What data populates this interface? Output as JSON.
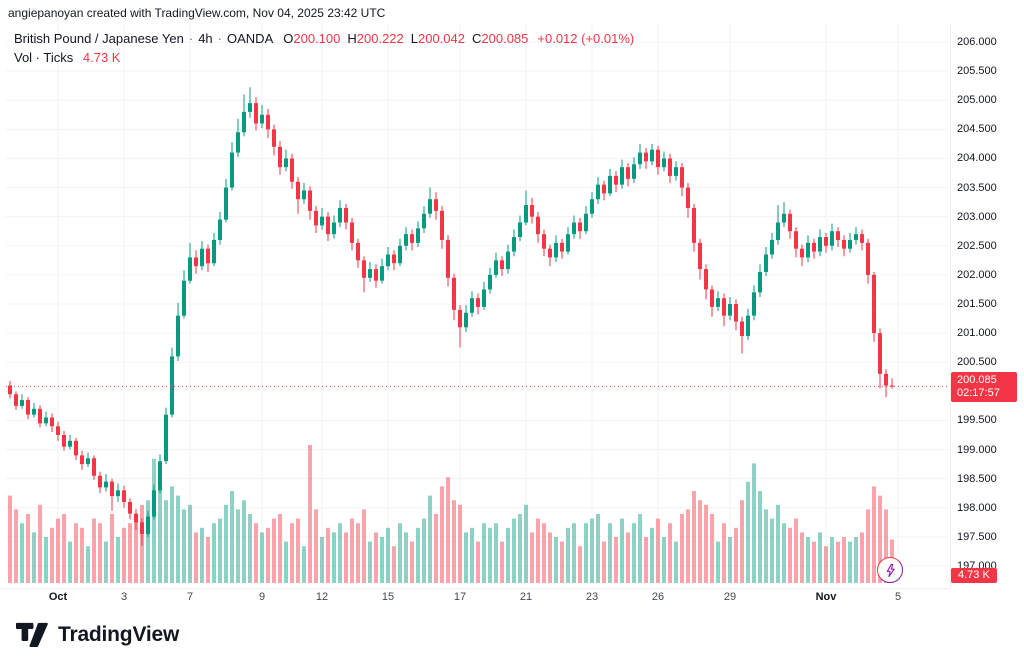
{
  "attribution": {
    "text": "angiepanoyan created with TradingView.com, Nov 04, 2025 23:42 UTC"
  },
  "legend": {
    "symbol": "British Pound / Japanese Yen",
    "separator": "·",
    "interval": "4h",
    "exchange": "OANDA",
    "ohlc": {
      "o_label": "O",
      "o": "200.100",
      "h_label": "H",
      "h": "200.222",
      "l_label": "L",
      "l": "200.042",
      "c_label": "C",
      "c": "200.085",
      "change": "+0.012 (+0.01%)"
    },
    "volume_row": {
      "label": "Vol · Ticks",
      "value": "4.73 K"
    }
  },
  "price_tag": {
    "price": "200.085",
    "countdown": "02:17:57"
  },
  "volume_tag": {
    "value": "4.73 K"
  },
  "footer": {
    "logo_text": "TradingView"
  },
  "colors": {
    "up": "#089981",
    "down": "#F23645",
    "vol_up": "rgba(8,153,129,0.45)",
    "vol_down": "rgba(242,54,69,0.45)",
    "tag_bg": "#F23645",
    "price_line": "#F23645",
    "text": "#131722",
    "grid": "#f2f3f5"
  },
  "price_scale": {
    "labels": [
      "206.000",
      "205.500",
      "205.000",
      "204.500",
      "204.000",
      "203.500",
      "203.000",
      "202.500",
      "202.000",
      "201.500",
      "201.000",
      "200.500",
      "199.500",
      "199.000",
      "198.500",
      "198.000",
      "197.500",
      "197.000"
    ]
  },
  "time_scale": {
    "labels": [
      {
        "text": "Oct",
        "index": 8,
        "major": true
      },
      {
        "text": "3",
        "index": 19,
        "major": false
      },
      {
        "text": "7",
        "index": 30,
        "major": false
      },
      {
        "text": "9",
        "index": 42,
        "major": false
      },
      {
        "text": "12",
        "index": 52,
        "major": false
      },
      {
        "text": "15",
        "index": 63,
        "major": false
      },
      {
        "text": "17",
        "index": 75,
        "major": false
      },
      {
        "text": "21",
        "index": 86,
        "major": false
      },
      {
        "text": "23",
        "index": 97,
        "major": false
      },
      {
        "text": "26",
        "index": 108,
        "major": false
      },
      {
        "text": "29",
        "index": 120,
        "major": false
      },
      {
        "text": "Nov",
        "index": 136,
        "major": true
      },
      {
        "text": "5",
        "index": 148,
        "major": false
      }
    ]
  },
  "chart_data": {
    "type": "candlestick",
    "title": "British Pound / Japanese Yen · 4h · OANDA",
    "ylim": [
      197.0,
      206.0
    ],
    "y_tick_step": 0.5,
    "last_price": 200.085,
    "price_line": 200.085,
    "volume_unit": "K ticks",
    "last_volume_k": 4.73,
    "columns": [
      "open",
      "high",
      "low",
      "close",
      "volume_k"
    ],
    "bars": [
      [
        200.1,
        200.18,
        199.88,
        199.95,
        9.5
      ],
      [
        199.95,
        200.0,
        199.68,
        199.75,
        8.0
      ],
      [
        199.75,
        199.95,
        199.7,
        199.85,
        6.5
      ],
      [
        199.85,
        199.9,
        199.52,
        199.6,
        7.5
      ],
      [
        199.6,
        199.8,
        199.55,
        199.7,
        5.5
      ],
      [
        199.7,
        199.76,
        199.38,
        199.45,
        8.5
      ],
      [
        199.45,
        199.65,
        199.4,
        199.55,
        5.0
      ],
      [
        199.55,
        199.62,
        199.3,
        199.4,
        6.0
      ],
      [
        199.4,
        199.48,
        199.15,
        199.25,
        7.0
      ],
      [
        199.25,
        199.32,
        198.98,
        199.05,
        7.5
      ],
      [
        199.05,
        199.25,
        199.0,
        199.15,
        4.5
      ],
      [
        199.15,
        199.2,
        198.82,
        198.9,
        6.5
      ],
      [
        198.9,
        198.98,
        198.65,
        198.75,
        6.0
      ],
      [
        198.75,
        198.95,
        198.7,
        198.85,
        4.0
      ],
      [
        198.85,
        198.9,
        198.48,
        198.55,
        7.0
      ],
      [
        198.55,
        198.62,
        198.25,
        198.35,
        6.5
      ],
      [
        198.35,
        198.58,
        198.28,
        198.45,
        4.5
      ],
      [
        198.45,
        198.5,
        197.95,
        198.2,
        7.5
      ],
      [
        198.2,
        198.42,
        198.1,
        198.3,
        5.0
      ],
      [
        198.3,
        198.38,
        198.0,
        198.1,
        6.0
      ],
      [
        198.1,
        198.16,
        197.8,
        197.9,
        6.5
      ],
      [
        197.9,
        197.98,
        197.62,
        197.75,
        7.0
      ],
      [
        197.75,
        197.82,
        197.35,
        197.55,
        8.5
      ],
      [
        197.55,
        197.95,
        197.5,
        197.85,
        9.0
      ],
      [
        197.85,
        198.4,
        197.8,
        198.3,
        13.5
      ],
      [
        198.3,
        198.92,
        198.25,
        198.8,
        11.0
      ],
      [
        198.8,
        199.72,
        198.75,
        199.6,
        9.0
      ],
      [
        199.6,
        200.75,
        199.55,
        200.6,
        10.5
      ],
      [
        200.6,
        201.52,
        200.52,
        201.3,
        9.5
      ],
      [
        201.3,
        202.08,
        201.25,
        201.9,
        8.0
      ],
      [
        201.9,
        202.55,
        201.85,
        202.3,
        8.5
      ],
      [
        202.3,
        202.42,
        202.02,
        202.15,
        5.5
      ],
      [
        202.15,
        202.58,
        202.08,
        202.45,
        6.0
      ],
      [
        202.45,
        202.52,
        202.05,
        202.2,
        5.0
      ],
      [
        202.2,
        202.72,
        202.15,
        202.6,
        6.5
      ],
      [
        202.6,
        203.08,
        202.52,
        202.95,
        7.0
      ],
      [
        202.95,
        203.65,
        202.9,
        203.5,
        8.5
      ],
      [
        203.5,
        204.28,
        203.45,
        204.1,
        10.0
      ],
      [
        204.1,
        204.68,
        204.02,
        204.45,
        8.0
      ],
      [
        204.45,
        205.1,
        204.38,
        204.8,
        9.0
      ],
      [
        204.8,
        205.22,
        204.7,
        204.95,
        7.5
      ],
      [
        204.95,
        205.05,
        204.48,
        204.6,
        6.5
      ],
      [
        204.6,
        204.92,
        204.52,
        204.75,
        5.5
      ],
      [
        204.75,
        204.85,
        204.35,
        204.5,
        6.0
      ],
      [
        204.5,
        204.58,
        204.05,
        204.2,
        7.0
      ],
      [
        204.2,
        204.3,
        203.72,
        203.85,
        7.5
      ],
      [
        203.85,
        204.15,
        203.78,
        204.0,
        4.5
      ],
      [
        204.0,
        204.08,
        203.48,
        203.6,
        6.5
      ],
      [
        203.6,
        203.68,
        203.05,
        203.3,
        7.0
      ],
      [
        203.3,
        203.58,
        203.22,
        203.45,
        4.0
      ],
      [
        203.45,
        203.52,
        202.95,
        203.1,
        15.0
      ],
      [
        203.1,
        203.18,
        202.72,
        202.85,
        8.0
      ],
      [
        202.85,
        203.15,
        202.78,
        203.0,
        5.0
      ],
      [
        203.0,
        203.08,
        202.58,
        202.7,
        6.0
      ],
      [
        202.7,
        203.02,
        202.62,
        202.9,
        5.5
      ],
      [
        202.9,
        203.28,
        202.82,
        203.15,
        6.5
      ],
      [
        203.15,
        203.22,
        202.78,
        202.9,
        5.5
      ],
      [
        202.9,
        202.98,
        202.42,
        202.55,
        7.0
      ],
      [
        202.55,
        202.62,
        202.12,
        202.25,
        6.5
      ],
      [
        202.25,
        202.32,
        201.7,
        201.95,
        8.0
      ],
      [
        201.95,
        202.22,
        201.88,
        202.1,
        4.5
      ],
      [
        202.1,
        202.18,
        201.78,
        201.9,
        5.5
      ],
      [
        201.9,
        202.28,
        201.85,
        202.15,
        5.0
      ],
      [
        202.15,
        202.48,
        202.08,
        202.35,
        6.0
      ],
      [
        202.35,
        202.42,
        202.08,
        202.2,
        4.0
      ],
      [
        202.2,
        202.62,
        202.15,
        202.5,
        6.5
      ],
      [
        202.5,
        202.82,
        202.42,
        202.7,
        5.5
      ],
      [
        202.7,
        202.78,
        202.42,
        202.55,
        4.5
      ],
      [
        202.55,
        202.92,
        202.48,
        202.8,
        6.0
      ],
      [
        202.8,
        203.18,
        202.72,
        203.05,
        7.0
      ],
      [
        203.05,
        203.5,
        202.98,
        203.3,
        9.5
      ],
      [
        203.3,
        203.42,
        202.95,
        203.1,
        7.5
      ],
      [
        203.1,
        203.18,
        202.45,
        202.6,
        10.5
      ],
      [
        202.6,
        202.68,
        201.8,
        201.95,
        11.5
      ],
      [
        201.95,
        202.02,
        201.22,
        201.4,
        9.0
      ],
      [
        201.4,
        201.48,
        200.75,
        201.1,
        8.5
      ],
      [
        201.1,
        201.48,
        201.02,
        201.35,
        5.5
      ],
      [
        201.35,
        201.72,
        201.28,
        201.6,
        6.0
      ],
      [
        201.6,
        201.68,
        201.32,
        201.45,
        4.5
      ],
      [
        201.45,
        201.88,
        201.4,
        201.75,
        6.5
      ],
      [
        201.75,
        202.12,
        201.68,
        202.0,
        6.0
      ],
      [
        202.0,
        202.38,
        201.95,
        202.25,
        6.5
      ],
      [
        202.25,
        202.32,
        201.98,
        202.1,
        4.5
      ],
      [
        202.1,
        202.52,
        202.02,
        202.4,
        6.0
      ],
      [
        202.4,
        202.78,
        202.32,
        202.65,
        7.0
      ],
      [
        202.65,
        203.02,
        202.58,
        202.9,
        7.5
      ],
      [
        202.9,
        203.45,
        202.85,
        203.2,
        8.5
      ],
      [
        203.2,
        203.32,
        202.88,
        203.0,
        5.5
      ],
      [
        203.0,
        203.08,
        202.55,
        202.7,
        7.0
      ],
      [
        202.7,
        202.78,
        202.32,
        202.45,
        6.5
      ],
      [
        202.45,
        202.52,
        202.15,
        202.3,
        5.5
      ],
      [
        202.3,
        202.68,
        202.22,
        202.55,
        5.0
      ],
      [
        202.55,
        202.62,
        202.28,
        202.4,
        4.5
      ],
      [
        202.4,
        202.82,
        202.35,
        202.7,
        6.0
      ],
      [
        202.7,
        203.02,
        202.62,
        202.9,
        6.5
      ],
      [
        202.9,
        202.98,
        202.62,
        202.75,
        4.0
      ],
      [
        202.75,
        203.18,
        202.7,
        203.05,
        6.5
      ],
      [
        203.05,
        203.42,
        202.98,
        203.3,
        7.0
      ],
      [
        203.3,
        203.68,
        203.22,
        203.55,
        7.5
      ],
      [
        203.55,
        203.62,
        203.28,
        203.4,
        4.5
      ],
      [
        203.4,
        203.82,
        203.35,
        203.7,
        6.5
      ],
      [
        203.7,
        203.78,
        203.42,
        203.55,
        5.0
      ],
      [
        203.55,
        203.98,
        203.48,
        203.85,
        7.0
      ],
      [
        203.85,
        203.92,
        203.52,
        203.65,
        5.5
      ],
      [
        203.65,
        204.02,
        203.58,
        203.9,
        6.5
      ],
      [
        203.9,
        204.25,
        203.82,
        204.1,
        7.5
      ],
      [
        204.1,
        204.18,
        203.82,
        203.95,
        5.0
      ],
      [
        203.95,
        204.25,
        203.88,
        204.15,
        6.0
      ],
      [
        204.15,
        204.22,
        203.72,
        203.85,
        7.0
      ],
      [
        203.85,
        204.12,
        203.78,
        204.0,
        5.0
      ],
      [
        204.0,
        204.08,
        203.58,
        203.7,
        6.5
      ],
      [
        203.7,
        203.95,
        203.62,
        203.85,
        4.5
      ],
      [
        203.85,
        203.92,
        203.35,
        203.5,
        7.5
      ],
      [
        203.5,
        203.58,
        202.98,
        203.15,
        8.0
      ],
      [
        203.15,
        203.22,
        202.4,
        202.55,
        10.0
      ],
      [
        202.55,
        202.62,
        201.92,
        202.1,
        9.0
      ],
      [
        202.1,
        202.18,
        201.58,
        201.75,
        8.5
      ],
      [
        201.75,
        201.82,
        201.28,
        201.45,
        7.5
      ],
      [
        201.45,
        201.72,
        201.38,
        201.6,
        4.5
      ],
      [
        201.6,
        201.68,
        201.12,
        201.3,
        6.5
      ],
      [
        201.3,
        201.62,
        201.22,
        201.5,
        5.0
      ],
      [
        201.5,
        201.58,
        201.05,
        201.2,
        6.0
      ],
      [
        201.2,
        201.28,
        200.65,
        200.95,
        9.0
      ],
      [
        200.95,
        201.42,
        200.88,
        201.3,
        11.0
      ],
      [
        201.3,
        201.82,
        201.22,
        201.7,
        13.0
      ],
      [
        201.7,
        202.18,
        201.62,
        202.05,
        10.0
      ],
      [
        202.05,
        202.48,
        201.98,
        202.35,
        8.0
      ],
      [
        202.35,
        202.72,
        202.28,
        202.6,
        7.0
      ],
      [
        202.6,
        203.2,
        202.52,
        202.9,
        8.5
      ],
      [
        202.9,
        203.25,
        202.82,
        203.05,
        6.5
      ],
      [
        203.05,
        203.12,
        202.62,
        202.75,
        6.0
      ],
      [
        202.75,
        202.82,
        202.3,
        202.45,
        7.0
      ],
      [
        202.45,
        202.52,
        202.15,
        202.3,
        5.5
      ],
      [
        202.3,
        202.68,
        202.22,
        202.55,
        5.0
      ],
      [
        202.55,
        202.62,
        202.28,
        202.4,
        4.5
      ],
      [
        202.4,
        202.78,
        202.32,
        202.65,
        5.5
      ],
      [
        202.65,
        202.72,
        202.38,
        202.5,
        4.0
      ],
      [
        202.5,
        202.88,
        202.42,
        202.75,
        5.0
      ],
      [
        202.75,
        202.82,
        202.48,
        202.6,
        4.5
      ],
      [
        202.6,
        202.68,
        202.32,
        202.45,
        5.0
      ],
      [
        202.45,
        202.72,
        202.38,
        202.6,
        4.5
      ],
      [
        202.6,
        202.82,
        202.52,
        202.7,
        5.0
      ],
      [
        202.7,
        202.78,
        202.42,
        202.55,
        5.5
      ],
      [
        202.55,
        202.62,
        201.85,
        202.0,
        8.0
      ],
      [
        202.0,
        202.05,
        200.85,
        201.0,
        10.5
      ],
      [
        201.0,
        201.08,
        200.05,
        200.3,
        9.5
      ],
      [
        200.3,
        200.38,
        199.9,
        200.1,
        8.0
      ],
      [
        200.1,
        200.222,
        200.042,
        200.085,
        4.73
      ]
    ]
  }
}
